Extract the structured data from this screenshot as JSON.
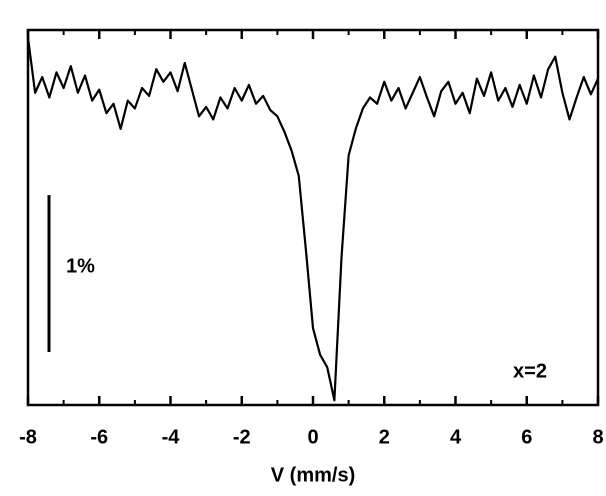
{
  "chart_data": {
    "type": "line",
    "xlabel": "V (mm/s)",
    "annotation": "x=2",
    "scale_bar": {
      "value": 1,
      "label": "1%"
    },
    "color": "#000000",
    "xlim": [
      -8,
      8
    ],
    "xticks": [
      -8,
      -6,
      -4,
      -2,
      0,
      2,
      4,
      6,
      8
    ],
    "xminorticks": [
      -7,
      -5,
      -3,
      -1,
      1,
      3,
      5,
      7
    ],
    "ylim": [
      97.96,
      100.35
    ],
    "x": [
      -8.0,
      -7.8,
      -7.6,
      -7.4,
      -7.2,
      -7.0,
      -6.8,
      -6.6,
      -6.4,
      -6.2,
      -6.0,
      -5.8,
      -5.6,
      -5.4,
      -5.2,
      -5.0,
      -4.8,
      -4.6,
      -4.4,
      -4.2,
      -4.0,
      -3.8,
      -3.6,
      -3.4,
      -3.2,
      -3.0,
      -2.8,
      -2.6,
      -2.4,
      -2.2,
      -2.0,
      -1.8,
      -1.6,
      -1.4,
      -1.2,
      -1.0,
      -0.8,
      -0.6,
      -0.4,
      -0.2,
      0.0,
      0.2,
      0.4,
      0.6,
      0.8,
      1.0,
      1.2,
      1.4,
      1.6,
      1.8,
      2.0,
      2.2,
      2.4,
      2.6,
      2.8,
      3.0,
      3.2,
      3.4,
      3.6,
      3.8,
      4.0,
      4.2,
      4.4,
      4.6,
      4.8,
      5.0,
      5.2,
      5.4,
      5.6,
      5.8,
      6.0,
      6.2,
      6.4,
      6.6,
      6.8,
      7.0,
      7.2,
      7.4,
      7.6,
      7.8,
      8.0
    ],
    "values": [
      100.3,
      99.95,
      100.05,
      99.92,
      100.08,
      99.98,
      100.12,
      99.95,
      100.06,
      99.9,
      99.97,
      99.82,
      99.88,
      99.72,
      99.9,
      99.85,
      99.98,
      99.93,
      100.1,
      100.02,
      100.08,
      99.96,
      100.14,
      99.97,
      99.8,
      99.86,
      99.78,
      99.92,
      99.85,
      99.98,
      99.9,
      100.0,
      99.88,
      99.93,
      99.84,
      99.8,
      99.7,
      99.58,
      99.42,
      98.95,
      98.45,
      98.28,
      98.2,
      97.99,
      98.9,
      99.55,
      99.72,
      99.85,
      99.92,
      99.88,
      100.02,
      99.9,
      99.98,
      99.85,
      99.95,
      100.05,
      99.92,
      99.8,
      99.96,
      100.02,
      99.88,
      99.95,
      99.82,
      100.04,
      99.93,
      100.08,
      99.9,
      99.98,
      99.86,
      100.0,
      99.88,
      100.06,
      99.92,
      100.1,
      100.18,
      99.95,
      99.78,
      99.92,
      100.05,
      99.94,
      100.04
    ]
  }
}
